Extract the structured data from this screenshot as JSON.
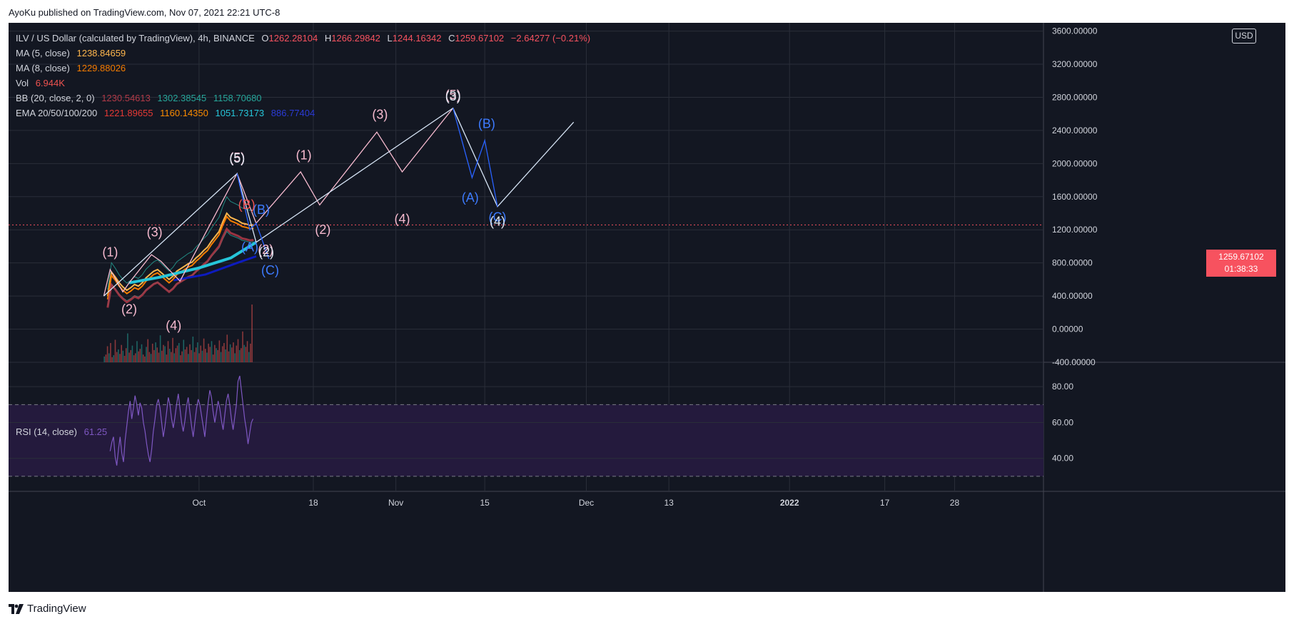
{
  "header": {
    "published_line": "AyoKu published on TradingView.com, Nov 07, 2021 22:21 UTC-8"
  },
  "legend": {
    "symbol_line": {
      "title": "ILV / US Dollar (calculated by TradingView), 4h, BINANCE",
      "o_label": "O",
      "o_value": "1262.28104",
      "h_label": "H",
      "h_value": "1266.29842",
      "l_label": "L",
      "l_value": "1244.16342",
      "c_label": "C",
      "c_value": "1259.67102",
      "change": "−2.64277 (−0.21%)"
    },
    "ma5": {
      "label": "MA (5, close)",
      "value": "1238.84659"
    },
    "ma8": {
      "label": "MA (8, close)",
      "value": "1229.88026"
    },
    "vol": {
      "label": "Vol",
      "value": "6.944K"
    },
    "bb": {
      "label": "BB (20, close, 2, 0)",
      "v1": "1230.54613",
      "v2": "1302.38545",
      "v3": "1158.70680"
    },
    "ema": {
      "label": "EMA 20/50/100/200",
      "v1": "1221.89655",
      "v2": "1160.14350",
      "v3": "1051.73173",
      "v4": "886.77404"
    }
  },
  "rsi_legend": {
    "label": "RSI (14, close)",
    "value": "61.25"
  },
  "currency_label": "USD",
  "last_price": {
    "price": "1259.67102",
    "countdown": "01:38:33"
  },
  "brand": {
    "name": "TradingView"
  },
  "colors": {
    "background": "#131722",
    "grid": "#2a2e39",
    "text": "#d1d4dc",
    "up": "#26a69a",
    "down": "#ef5350",
    "pink_wave": "#f8bbd0",
    "blue_wave": "#2962ff",
    "white_wave": "#d6e4f5",
    "rsi_line": "#7e57c2",
    "rsi_band": "#241a3d",
    "ma5": "#ffb74d",
    "ma8": "#f57c00",
    "ema100": "#26c6da",
    "ema200": "#0d1bbf"
  },
  "chart_data": {
    "type": "candlestick",
    "symbol": "ILV / US Dollar (calculated by TradingView), 4h, BINANCE",
    "price_axis": {
      "ticks": [
        "3600.00000",
        "3200.00000",
        "2800.00000",
        "2400.00000",
        "2000.00000",
        "1600.00000",
        "1200.00000",
        "800.00000",
        "400.00000",
        "0.00000",
        "-400.00000"
      ],
      "tick_values": [
        3600,
        3200,
        2800,
        2400,
        2000,
        1600,
        1200,
        800,
        400,
        0,
        -400
      ],
      "ylim": [
        -400,
        3700
      ]
    },
    "rsi_axis": {
      "ticks": [
        "80.00",
        "60.00",
        "40.00"
      ],
      "tick_values": [
        80,
        60,
        40
      ],
      "upper_band": 70,
      "lower_band": 30,
      "ylim": [
        22,
        92
      ]
    },
    "time_axis": {
      "labels": [
        "Oct",
        "18",
        "Nov",
        "15",
        "Dec",
        "13",
        "2022",
        "17",
        "28"
      ],
      "label_days": [
        30,
        48,
        61,
        75,
        91,
        104,
        123,
        138,
        149
      ],
      "xlim": [
        0,
        163
      ]
    },
    "price_path": [
      [
        1,
        400
      ],
      [
        2,
        690
      ],
      [
        3,
        630
      ],
      [
        4,
        560
      ],
      [
        5,
        510
      ],
      [
        6,
        470
      ],
      [
        7,
        500
      ],
      [
        8,
        540
      ],
      [
        9,
        520
      ],
      [
        10,
        560
      ],
      [
        11,
        620
      ],
      [
        12,
        660
      ],
      [
        13,
        700
      ],
      [
        14,
        720
      ],
      [
        15,
        680
      ],
      [
        16,
        640
      ],
      [
        17,
        600
      ],
      [
        18,
        640
      ],
      [
        19,
        700
      ],
      [
        20,
        730
      ],
      [
        21,
        760
      ],
      [
        22,
        790
      ],
      [
        23,
        810
      ],
      [
        24,
        860
      ],
      [
        25,
        900
      ],
      [
        26,
        950
      ],
      [
        27,
        990
      ],
      [
        28,
        1060
      ],
      [
        29,
        1120
      ],
      [
        30,
        1180
      ],
      [
        31,
        1300
      ],
      [
        32,
        1400
      ],
      [
        33,
        1350
      ],
      [
        34,
        1330
      ],
      [
        35,
        1310
      ],
      [
        36,
        1280
      ],
      [
        37,
        1270
      ],
      [
        38,
        1255
      ],
      [
        39,
        1259
      ]
    ],
    "volume_bars": [
      9,
      12,
      25,
      14,
      30,
      8,
      11,
      35,
      16,
      20,
      13,
      27,
      18,
      10,
      22,
      45,
      15,
      19,
      26,
      11,
      14,
      33,
      17,
      21,
      28,
      12,
      9,
      24,
      36,
      16,
      13,
      29,
      19,
      31,
      23,
      15,
      42,
      18,
      27,
      25,
      12,
      33,
      21,
      16,
      38,
      14,
      22,
      26,
      30,
      11,
      17,
      35,
      20,
      24,
      13,
      28,
      19,
      40,
      16,
      23,
      31,
      14,
      26,
      18,
      37,
      21,
      15,
      29,
      24,
      33,
      12,
      27,
      22,
      19,
      34,
      16,
      25,
      30,
      20,
      43,
      17,
      28,
      23,
      31,
      14,
      26,
      36,
      19,
      22,
      48,
      27,
      24,
      33,
      16,
      29,
      90
    ],
    "rsi_values": [
      44,
      49,
      52,
      41,
      36,
      45,
      52,
      43,
      38,
      50,
      58,
      66,
      72,
      62,
      68,
      75,
      70,
      64,
      71,
      68,
      60,
      55,
      48,
      42,
      38,
      45,
      55,
      62,
      70,
      73,
      68,
      60,
      52,
      58,
      66,
      74,
      70,
      62,
      57,
      63,
      70,
      76,
      68,
      60,
      55,
      61,
      69,
      74,
      66,
      58,
      52,
      60,
      68,
      73,
      70,
      64,
      58,
      52,
      62,
      71,
      78,
      74,
      66,
      60,
      66,
      72,
      68,
      61,
      56,
      64,
      72,
      76,
      70,
      62,
      56,
      63,
      70,
      83,
      86,
      78,
      70,
      62,
      56,
      48,
      54,
      60,
      62
    ],
    "annotations": {
      "pink_labels": [
        "(1)",
        "(2)",
        "(3)",
        "(4)",
        "(5)",
        "(1)",
        "(2)",
        "(3)",
        "(4)",
        "(5)",
        "(2)"
      ],
      "blue_labels": [
        "(A)",
        "(B)",
        "(C)",
        "(A)",
        "(B)",
        "(C)"
      ],
      "white_labels": [
        "(5)",
        "(3)",
        "(4)",
        "(2)"
      ],
      "red_labels": [
        "(B)"
      ]
    }
  }
}
